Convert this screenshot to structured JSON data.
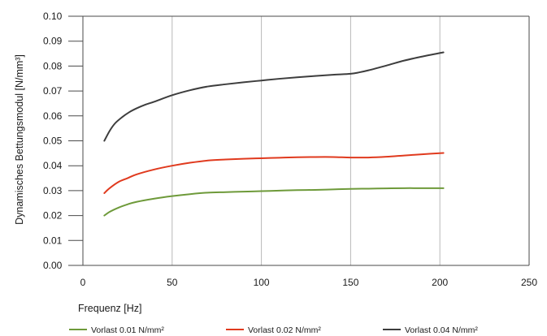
{
  "chart_data": {
    "type": "line",
    "xlabel": "Frequenz [Hz]",
    "ylabel": "Dynamisches Bettungsmodul [N/mm³]",
    "xlim": [
      0,
      250
    ],
    "ylim": [
      0,
      0.1
    ],
    "x_ticks": [
      "0",
      "50",
      "100",
      "150",
      "200",
      "250"
    ],
    "y_ticks": [
      "0.00",
      "0.01",
      "0.02",
      "0.03",
      "0.04",
      "0.05",
      "0.06",
      "0.07",
      "0.08",
      "0.09",
      "0.10"
    ],
    "grid": "vertical",
    "legend_position": "bottom",
    "series": [
      {
        "name": "Vorlast 0.01 N/mm²",
        "color": "#6e9a3a",
        "x": [
          12,
          15,
          20,
          25,
          30,
          40,
          50,
          60,
          70,
          80,
          90,
          100,
          110,
          120,
          130,
          140,
          150,
          160,
          170,
          180,
          190,
          202
        ],
        "y": [
          0.02,
          0.0215,
          0.0232,
          0.0245,
          0.0255,
          0.0268,
          0.0278,
          0.0286,
          0.0292,
          0.0294,
          0.0296,
          0.0298,
          0.03,
          0.0302,
          0.0303,
          0.0305,
          0.0307,
          0.0308,
          0.0309,
          0.031,
          0.031,
          0.031
        ]
      },
      {
        "name": "Vorlast 0.02 N/mm²",
        "color": "#e03a1e",
        "x": [
          12,
          15,
          20,
          25,
          30,
          40,
          50,
          60,
          70,
          80,
          90,
          100,
          110,
          120,
          130,
          140,
          150,
          160,
          170,
          180,
          190,
          202
        ],
        "y": [
          0.029,
          0.031,
          0.0335,
          0.035,
          0.0365,
          0.0385,
          0.04,
          0.0412,
          0.0421,
          0.0425,
          0.0428,
          0.043,
          0.0432,
          0.0434,
          0.0435,
          0.0435,
          0.0433,
          0.0433,
          0.0436,
          0.0441,
          0.0446,
          0.0451
        ]
      },
      {
        "name": "Vorlast 0.04 N/mm²",
        "color": "#3d3d3d",
        "x": [
          12,
          15,
          18,
          22,
          26,
          30,
          35,
          40,
          50,
          60,
          70,
          80,
          90,
          100,
          110,
          120,
          130,
          140,
          150,
          155,
          160,
          170,
          180,
          190,
          202
        ],
        "y": [
          0.05,
          0.054,
          0.057,
          0.0595,
          0.0615,
          0.063,
          0.0645,
          0.0657,
          0.0683,
          0.0703,
          0.0718,
          0.0727,
          0.0735,
          0.0742,
          0.0749,
          0.0755,
          0.076,
          0.0765,
          0.0769,
          0.0775,
          0.0783,
          0.0802,
          0.0822,
          0.0838,
          0.0855
        ]
      }
    ]
  }
}
